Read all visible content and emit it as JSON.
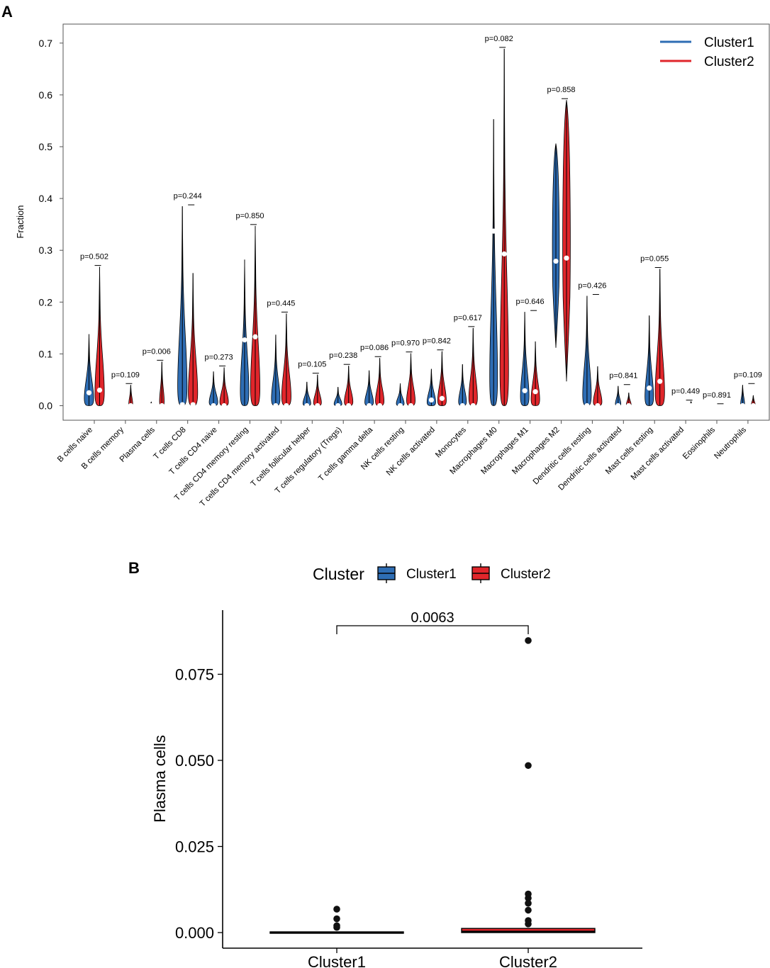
{
  "panel_labels": {
    "a": "A",
    "b": "B"
  },
  "colors": {
    "cluster1": "#2e6db4",
    "cluster2": "#e0262b",
    "point": "#111111",
    "median": "#ffffff"
  },
  "chart_data": [
    {
      "type": "violin",
      "ylabel": "Fraction",
      "ylim": [
        0,
        0.72
      ],
      "yticks": [
        "0.0",
        "0.1",
        "0.2",
        "0.3",
        "0.4",
        "0.5",
        "0.6",
        "0.7"
      ],
      "legend": {
        "position": "top-right",
        "entries": [
          "Cluster1",
          "Cluster2"
        ]
      },
      "categories": [
        {
          "name": "B cells naive",
          "p": "p=0.502",
          "c1": {
            "max": 0.138,
            "median": 0.025,
            "w": 0.6
          },
          "c2": {
            "max": 0.268,
            "median": 0.03,
            "w": 0.6
          }
        },
        {
          "name": "B cells memory",
          "p": "p=0.109",
          "c1": {
            "max": 0.002,
            "median": 0.0,
            "w": 0.08
          },
          "c2": {
            "max": 0.04,
            "median": 0.0,
            "w": 0.25
          }
        },
        {
          "name": "Plasma cells",
          "p": "p=0.006",
          "c1": {
            "max": 0.007,
            "median": 0.0,
            "w": 0.1
          },
          "c2": {
            "max": 0.085,
            "median": 0.0,
            "w": 0.3
          }
        },
        {
          "name": "T cells CD8",
          "p": "p=0.244",
          "c1": {
            "max": 0.385,
            "median": 0.002,
            "w": 0.6
          },
          "c2": {
            "max": 0.256,
            "median": 0.002,
            "w": 0.6
          }
        },
        {
          "name": "T cells CD4 naive",
          "p": "p=0.273",
          "c1": {
            "max": 0.066,
            "median": 0.0,
            "w": 0.55
          },
          "c2": {
            "max": 0.074,
            "median": 0.0,
            "w": 0.55
          }
        },
        {
          "name": "T cells CD4 memory resting",
          "p": "p=0.850",
          "c1": {
            "max": 0.282,
            "median": 0.127,
            "w": 0.55
          },
          "c2": {
            "max": 0.347,
            "median": 0.133,
            "w": 0.6
          }
        },
        {
          "name": "T cells CD4 memory activated",
          "p": "p=0.445",
          "c1": {
            "max": 0.137,
            "median": 0.0,
            "w": 0.55
          },
          "c2": {
            "max": 0.178,
            "median": 0.0,
            "w": 0.6
          }
        },
        {
          "name": "T cells follicular helper",
          "p": "p=0.105",
          "c1": {
            "max": 0.046,
            "median": 0.0,
            "w": 0.5
          },
          "c2": {
            "max": 0.06,
            "median": 0.0,
            "w": 0.5
          }
        },
        {
          "name": "T cells regulatory (Tregs)",
          "p": "p=0.238",
          "c1": {
            "max": 0.036,
            "median": 0.0,
            "w": 0.5
          },
          "c2": {
            "max": 0.077,
            "median": 0.0,
            "w": 0.55
          }
        },
        {
          "name": "T cells gamma delta",
          "p": "p=0.086",
          "c1": {
            "max": 0.068,
            "median": 0.0,
            "w": 0.55
          },
          "c2": {
            "max": 0.092,
            "median": 0.0,
            "w": 0.55
          }
        },
        {
          "name": "NK cells resting",
          "p": "p=0.970",
          "c1": {
            "max": 0.043,
            "median": 0.0,
            "w": 0.5
          },
          "c2": {
            "max": 0.101,
            "median": 0.0,
            "w": 0.55
          }
        },
        {
          "name": "NK cells activated",
          "p": "p=0.842",
          "c1": {
            "max": 0.071,
            "median": 0.011,
            "w": 0.55
          },
          "c2": {
            "max": 0.105,
            "median": 0.014,
            "w": 0.55
          }
        },
        {
          "name": "Monocytes",
          "p": "p=0.617",
          "c1": {
            "max": 0.08,
            "median": 0.0,
            "w": 0.5
          },
          "c2": {
            "max": 0.15,
            "median": 0.0,
            "w": 0.55
          }
        },
        {
          "name": "Macrophages M0",
          "p": "p=0.082",
          "c1": {
            "max": 0.553,
            "median": 0.337,
            "w": 0.5
          },
          "c2": {
            "max": 0.689,
            "median": 0.293,
            "w": 0.55
          }
        },
        {
          "name": "Macrophages M1",
          "p": "p=0.646",
          "c1": {
            "max": 0.181,
            "median": 0.029,
            "w": 0.55
          },
          "c2": {
            "max": 0.124,
            "median": 0.027,
            "w": 0.55
          }
        },
        {
          "name": "Macrophages M2",
          "p": "p=0.858",
          "c1": {
            "max": 0.506,
            "median": 0.279,
            "w": 0.5,
            "min": 0.112
          },
          "c2": {
            "max": 0.59,
            "median": 0.285,
            "w": 0.55,
            "min": 0.047
          }
        },
        {
          "name": "Dendritic cells resting",
          "p": "p=0.426",
          "c1": {
            "max": 0.212,
            "median": 0.0,
            "w": 0.55
          },
          "c2": {
            "max": 0.076,
            "median": 0.0,
            "w": 0.55
          }
        },
        {
          "name": "Dendritic cells activated",
          "p": "p=0.841",
          "c1": {
            "max": 0.038,
            "median": 0.0,
            "w": 0.35
          },
          "c2": {
            "max": 0.025,
            "median": 0.0,
            "w": 0.3
          }
        },
        {
          "name": "Mast cells resting",
          "p": "p=0.055",
          "c1": {
            "max": 0.174,
            "median": 0.034,
            "w": 0.55
          },
          "c2": {
            "max": 0.264,
            "median": 0.047,
            "w": 0.6
          }
        },
        {
          "name": "Mast cells activated",
          "p": "p=0.449",
          "c1": {
            "max": 0.003,
            "median": 0.0,
            "w": 0.1
          },
          "c2": {
            "max": 0.008,
            "median": 0.0,
            "w": 0.12
          }
        },
        {
          "name": "Eosinophils",
          "p": "p=0.891",
          "c1": {
            "max": 0.001,
            "median": 0.0,
            "w": 0.08
          },
          "c2": {
            "max": 0.001,
            "median": 0.0,
            "w": 0.08
          }
        },
        {
          "name": "Neutrophils",
          "p": "p=0.109",
          "c1": {
            "max": 0.04,
            "median": 0.0,
            "w": 0.25
          },
          "c2": {
            "max": 0.02,
            "median": 0.0,
            "w": 0.25
          }
        }
      ]
    },
    {
      "type": "box",
      "legend": {
        "title": "Cluster",
        "entries": [
          "Cluster1",
          "Cluster2"
        ],
        "position": "top"
      },
      "ylabel": "Plasma cells",
      "ylim": [
        -0.004,
        0.091
      ],
      "yticks": [
        "0.000",
        "0.025",
        "0.050",
        "0.075"
      ],
      "categories": [
        "Cluster1",
        "Cluster2"
      ],
      "boxes": [
        {
          "name": "Cluster1",
          "q1": 0.0,
          "median": 0.0,
          "q3": 0.0,
          "outliers": [
            0.0015,
            0.002,
            0.004,
            0.0068
          ]
        },
        {
          "name": "Cluster2",
          "q1": 0.0,
          "median": 0.0003,
          "q3": 0.0012,
          "outliers": [
            0.0025,
            0.0035,
            0.0065,
            0.0085,
            0.01,
            0.0112,
            0.0485,
            0.0848
          ]
        }
      ],
      "pvalue": "0.0063"
    }
  ]
}
